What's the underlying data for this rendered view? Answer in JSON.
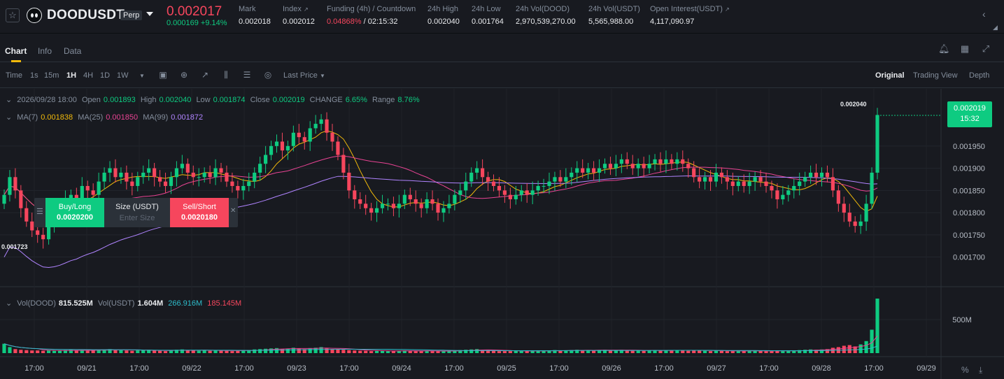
{
  "ticker": {
    "symbol": "DOODUSDT",
    "contract_badge": "Perp",
    "last_price": "0.002017",
    "price_change": "0.000169 +9.14%",
    "mark": {
      "label": "Mark",
      "value": "0.002018"
    },
    "index": {
      "label": "Index",
      "value": "0.002012"
    },
    "funding": {
      "label": "Funding (4h) / Countdown",
      "rate": "0.04868%",
      "countdown": "/ 02:15:32"
    },
    "high": {
      "label": "24h High",
      "value": "0.002040"
    },
    "low": {
      "label": "24h Low",
      "value": "0.001764"
    },
    "vol_base": {
      "label": "24h Vol(DOOD)",
      "value": "2,970,539,270.00"
    },
    "vol_quote": {
      "label": "24h Vol(USDT)",
      "value": "5,565,988.00"
    },
    "open_interest": {
      "label": "Open Interest(USDT)",
      "value": "4,117,090.97"
    }
  },
  "tabs": [
    "Chart",
    "Info",
    "Data"
  ],
  "active_tab": "Chart",
  "toolbar": {
    "intervals": [
      "Time",
      "1s",
      "15m",
      "1H",
      "4H",
      "1D",
      "1W"
    ],
    "active_interval": "1H",
    "price_source": "Last Price",
    "views": [
      "Original",
      "Trading View",
      "Depth"
    ],
    "active_view": "Original"
  },
  "ohlc_legend": {
    "date": "2026/09/28 18:00",
    "open_label": "Open",
    "open": "0.001893",
    "high_label": "High",
    "high": "0.002040",
    "low_label": "Low",
    "low": "0.001874",
    "close_label": "Close",
    "close": "0.002019",
    "change_label": "CHANGE",
    "change": "6.65%",
    "range_label": "Range",
    "range": "8.76%"
  },
  "ma_legend": {
    "ma7_label": "MA(7)",
    "ma7": "0.001838",
    "ma25_label": "MA(25)",
    "ma25": "0.001850",
    "ma99_label": "MA(99)",
    "ma99": "0.001872"
  },
  "vol_legend": {
    "base_label": "Vol(DOOD)",
    "base": "815.525M",
    "quote_label": "Vol(USDT)",
    "quote": "1.604M",
    "ma1": "266.916M",
    "ma2": "185.145M"
  },
  "trade_widget": {
    "buy_label": "Buy/Long",
    "buy_price": "0.0020200",
    "size_label": "Size (USDT)",
    "size_placeholder": "Enter Size",
    "sell_label": "Sell/Short",
    "sell_price": "0.0020180"
  },
  "current_price_tag": {
    "price": "0.002019",
    "countdown": "15:32"
  },
  "high_marker": "0.002040",
  "low_marker": "0.001723",
  "volume_axis_label": "500M",
  "colors": {
    "up": "#0ecb81",
    "down": "#f6465d",
    "ma7": "#f0b90b",
    "ma25": "#e84393",
    "ma99": "#b084ff",
    "accent": "#f0b90b"
  },
  "chart_data": {
    "type": "candlestick",
    "interval": "1H",
    "price_axis": {
      "ticks": [
        "0.001950",
        "0.001900",
        "0.001850",
        "0.001800",
        "0.001750",
        "0.001700"
      ],
      "range": [
        0.00163,
        0.00206
      ]
    },
    "time_axis": {
      "ticks": [
        "17:00",
        "09/21",
        "17:00",
        "09/22",
        "17:00",
        "09/23",
        "17:00",
        "09/24",
        "17:00",
        "09/25",
        "17:00",
        "09/26",
        "17:00",
        "09/27",
        "17:00",
        "09/28",
        "17:00",
        "09/29"
      ]
    },
    "close": [
      0.00184,
      0.00188,
      0.00185,
      0.00181,
      0.00178,
      0.00176,
      0.00175,
      0.00174,
      0.00177,
      0.00179,
      0.00181,
      0.00183,
      0.00184,
      0.00182,
      0.00186,
      0.00185,
      0.00184,
      0.00187,
      0.00189,
      0.0019,
      0.00188,
      0.00189,
      0.00187,
      0.00186,
      0.00188,
      0.00189,
      0.0019,
      0.00188,
      0.00187,
      0.00186,
      0.00188,
      0.0019,
      0.00191,
      0.00189,
      0.00188,
      0.00188,
      0.00189,
      0.00188,
      0.0019,
      0.00189,
      0.00187,
      0.00186,
      0.00185,
      0.00186,
      0.00187,
      0.00189,
      0.00191,
      0.00193,
      0.00195,
      0.00196,
      0.00194,
      0.00195,
      0.00198,
      0.00197,
      0.00196,
      0.00199,
      0.002,
      0.00201,
      0.00198,
      0.00196,
      0.00193,
      0.00189,
      0.00185,
      0.00183,
      0.00182,
      0.00181,
      0.0018,
      0.00181,
      0.00182,
      0.00182,
      0.00181,
      0.00182,
      0.00184,
      0.00183,
      0.00182,
      0.00181,
      0.00183,
      0.00182,
      0.0018,
      0.00181,
      0.00182,
      0.00184,
      0.00185,
      0.00187,
      0.00189,
      0.0019,
      0.00188,
      0.00187,
      0.00186,
      0.00185,
      0.00184,
      0.00183,
      0.00184,
      0.00185,
      0.00184,
      0.00185,
      0.00186,
      0.00186,
      0.00187,
      0.00188,
      0.00187,
      0.00188,
      0.00189,
      0.0019,
      0.00189,
      0.0019,
      0.00189,
      0.0019,
      0.00191,
      0.0019,
      0.00191,
      0.00192,
      0.00191,
      0.0019,
      0.00191,
      0.0019,
      0.00191,
      0.00192,
      0.00191,
      0.00192,
      0.00191,
      0.00192,
      0.00191,
      0.0019,
      0.00188,
      0.00187,
      0.00188,
      0.00187,
      0.00189,
      0.00188,
      0.00187,
      0.00186,
      0.00187,
      0.00186,
      0.00187,
      0.00188,
      0.00187,
      0.00186,
      0.00185,
      0.00183,
      0.00184,
      0.00185,
      0.00186,
      0.00187,
      0.00188,
      0.00189,
      0.00188,
      0.00189,
      0.00188,
      0.00185,
      0.00182,
      0.0018,
      0.00178,
      0.00177,
      0.00178,
      0.00182,
      0.00189,
      0.00202
    ],
    "volume_scale_note": "relative",
    "volume": [
      140,
      90,
      60,
      50,
      45,
      40,
      40,
      35,
      40,
      35,
      40,
      45,
      50,
      40,
      45,
      35,
      40,
      50,
      55,
      60,
      50,
      45,
      40,
      35,
      40,
      45,
      50,
      40,
      35,
      30,
      40,
      50,
      55,
      45,
      40,
      35,
      40,
      35,
      45,
      40,
      35,
      30,
      35,
      40,
      45,
      55,
      60,
      65,
      70,
      75,
      60,
      65,
      80,
      70,
      60,
      75,
      80,
      90,
      70,
      60,
      55,
      50,
      45,
      40,
      35,
      35,
      30,
      35,
      35,
      30,
      30,
      35,
      40,
      35,
      30,
      30,
      35,
      30,
      30,
      30,
      35,
      40,
      45,
      50,
      55,
      60,
      45,
      40,
      35,
      30,
      30,
      30,
      35,
      35,
      30,
      35,
      35,
      30,
      40,
      45,
      35,
      40,
      45,
      50,
      40,
      45,
      40,
      45,
      50,
      40,
      45,
      50,
      40,
      35,
      40,
      35,
      40,
      45,
      40,
      45,
      40,
      45,
      40,
      35,
      45,
      40,
      35,
      30,
      40,
      35,
      30,
      30,
      35,
      30,
      35,
      40,
      35,
      30,
      30,
      35,
      30,
      35,
      40,
      45,
      50,
      55,
      50,
      55,
      60,
      80,
      90,
      110,
      120,
      100,
      130,
      180,
      350,
      815
    ]
  }
}
